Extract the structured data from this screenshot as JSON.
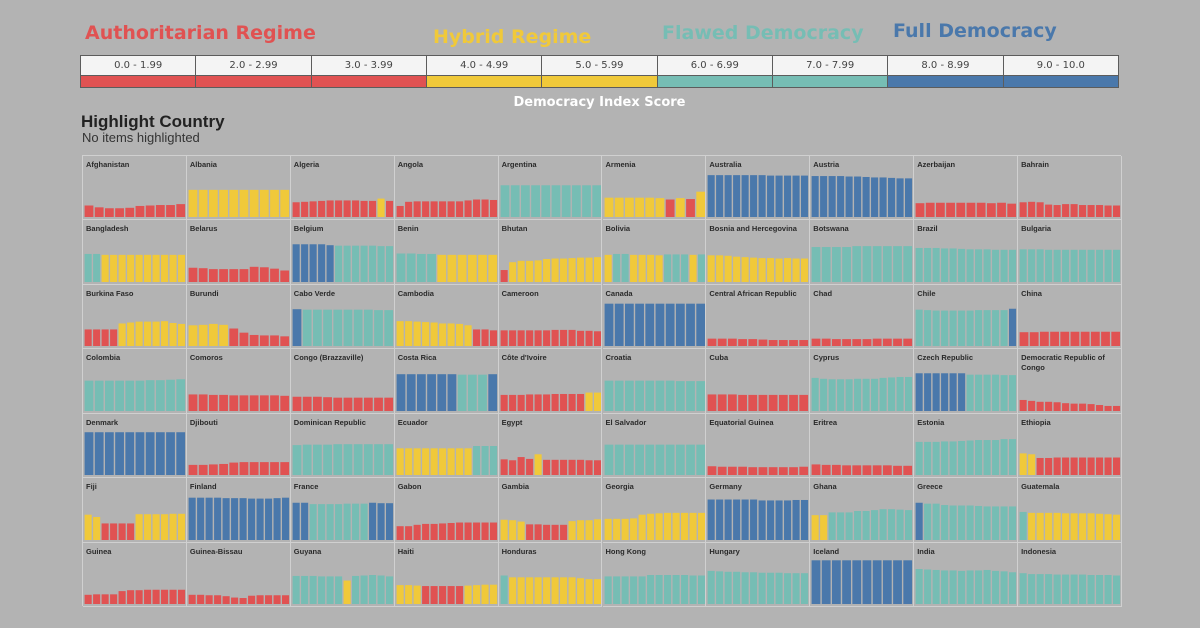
{
  "legend": {
    "titles": [
      {
        "label": "Authoritarian Regime",
        "color": "#e05252"
      },
      {
        "label": "Hybrid Regime",
        "color": "#f0c93a"
      },
      {
        "label": "Flawed Democracy",
        "color": "#76bdb4"
      },
      {
        "label": "Full Democracy",
        "color": "#4a78ab"
      }
    ],
    "segments": [
      {
        "label": "0.0 - 1.99",
        "color": "#e05252"
      },
      {
        "label": "2.0 - 2.99",
        "color": "#e05252"
      },
      {
        "label": "3.0 - 3.99",
        "color": "#e05252"
      },
      {
        "label": "4.0 - 4.99",
        "color": "#f0c93a"
      },
      {
        "label": "5.0 - 5.99",
        "color": "#f0c93a"
      },
      {
        "label": "6.0 - 6.99",
        "color": "#76bdb4"
      },
      {
        "label": "7.0 - 7.99",
        "color": "#76bdb4"
      },
      {
        "label": "8.0 - 8.99",
        "color": "#4a78ab"
      },
      {
        "label": "9.0 - 10.0",
        "color": "#4a78ab"
      }
    ],
    "caption": "Democracy Index Score"
  },
  "highlight": {
    "title": "Highlight Country",
    "status": "No items highlighted"
  },
  "chart_data": {
    "type": "bar",
    "ylim": [
      0,
      10
    ],
    "thresholds": {
      "hybrid": 4.0,
      "flawed": 6.0,
      "full": 8.0
    },
    "colors": {
      "authoritarian": "#e05252",
      "hybrid": "#f0c93a",
      "flawed": "#76bdb4",
      "full": "#4a78ab"
    },
    "countries": [
      {
        "name": "Afghanistan",
        "values": [
          2.5,
          2.1,
          1.9,
          1.9,
          2.0,
          2.4,
          2.5,
          2.6,
          2.6,
          2.8
        ]
      },
      {
        "name": "Albania",
        "values": [
          5.9,
          5.9,
          5.9,
          5.9,
          5.9,
          5.9,
          5.9,
          5.9,
          5.9,
          5.9
        ]
      },
      {
        "name": "Algeria",
        "values": [
          3.2,
          3.3,
          3.4,
          3.5,
          3.6,
          3.6,
          3.6,
          3.6,
          3.5,
          3.5,
          4.0,
          3.5
        ]
      },
      {
        "name": "Angola",
        "values": [
          2.4,
          3.3,
          3.4,
          3.4,
          3.4,
          3.4,
          3.4,
          3.4,
          3.6,
          3.8,
          3.8,
          3.7
        ]
      },
      {
        "name": "Argentina",
        "values": [
          6.9,
          6.9,
          6.9,
          6.9,
          6.9,
          6.9,
          6.9,
          6.9,
          6.9,
          6.9
        ]
      },
      {
        "name": "Armenia",
        "values": [
          4.2,
          4.2,
          4.2,
          4.2,
          4.2,
          4.1,
          3.8,
          4.1,
          3.9,
          5.5
        ]
      },
      {
        "name": "Australia",
        "values": [
          9.1,
          9.1,
          9.1,
          9.1,
          9.1,
          9.1,
          9.1,
          9.0,
          9.0,
          9.0,
          9.0,
          9.0
        ]
      },
      {
        "name": "Austria",
        "values": [
          8.9,
          8.9,
          8.9,
          8.9,
          8.8,
          8.8,
          8.7,
          8.6,
          8.6,
          8.5,
          8.4,
          8.4
        ]
      },
      {
        "name": "Azerbaijan",
        "values": [
          3.0,
          3.1,
          3.1,
          3.1,
          3.1,
          3.1,
          3.1,
          3.0,
          3.1,
          2.9
        ]
      },
      {
        "name": "Bahrain",
        "values": [
          3.2,
          3.3,
          3.2,
          2.7,
          2.6,
          2.8,
          2.8,
          2.6,
          2.6,
          2.6,
          2.5,
          2.5
        ]
      },
      {
        "name": "Bangladesh",
        "values": [
          6.1,
          6.1,
          5.9,
          5.9,
          5.9,
          5.9,
          5.9,
          5.9,
          5.9,
          5.9,
          5.9,
          5.9
        ]
      },
      {
        "name": "Belarus",
        "values": [
          3.1,
          3.0,
          2.8,
          2.8,
          2.8,
          2.8,
          3.3,
          3.2,
          2.9,
          2.5
        ]
      },
      {
        "name": "Belgium",
        "values": [
          8.2,
          8.2,
          8.2,
          8.2,
          8.0,
          7.9,
          7.9,
          7.9,
          7.9,
          7.9,
          7.8,
          7.8
        ]
      },
      {
        "name": "Benin",
        "values": [
          6.2,
          6.2,
          6.1,
          6.1,
          5.9,
          5.9,
          5.9,
          5.9,
          5.9,
          5.9
        ]
      },
      {
        "name": "Bhutan",
        "values": [
          2.6,
          4.3,
          4.6,
          4.6,
          4.7,
          5.0,
          5.1,
          5.1,
          5.2,
          5.3,
          5.3,
          5.4
        ]
      },
      {
        "name": "Bolivia",
        "values": [
          5.9,
          6.1,
          6.1,
          5.9,
          5.9,
          5.9,
          5.8,
          6.0,
          6.0,
          6.0,
          5.9,
          6.0
        ]
      },
      {
        "name": "Bosnia and Hercegovina",
        "values": [
          5.8,
          5.8,
          5.7,
          5.5,
          5.4,
          5.3,
          5.2,
          5.2,
          5.1,
          5.2,
          5.1,
          5.1
        ]
      },
      {
        "name": "Botswana",
        "values": [
          7.6,
          7.6,
          7.6,
          7.6,
          7.8,
          7.8,
          7.8,
          7.8,
          7.8,
          7.8
        ]
      },
      {
        "name": "Brazil",
        "values": [
          7.4,
          7.4,
          7.4,
          7.3,
          7.3,
          7.2,
          7.1,
          7.1,
          7.1,
          7.0,
          7.0,
          7.0
        ]
      },
      {
        "name": "Bulgaria",
        "values": [
          7.1,
          7.1,
          7.1,
          7.0,
          7.0,
          7.0,
          7.0,
          7.0,
          7.0,
          7.0,
          7.0,
          7.0
        ]
      },
      {
        "name": "Burkina Faso",
        "values": [
          3.6,
          3.6,
          3.6,
          3.6,
          4.9,
          5.1,
          5.3,
          5.3,
          5.3,
          5.4,
          5.0,
          4.8
        ]
      },
      {
        "name": "Burundi",
        "values": [
          4.5,
          4.6,
          4.8,
          4.6,
          3.8,
          2.9,
          2.4,
          2.3,
          2.3,
          2.1
        ]
      },
      {
        "name": "Cabo Verde",
        "values": [
          8.0,
          7.9,
          7.9,
          7.9,
          7.9,
          7.9,
          7.9,
          7.9,
          7.8,
          7.8
        ]
      },
      {
        "name": "Cambodia",
        "values": [
          5.4,
          5.4,
          5.3,
          5.2,
          5.1,
          4.9,
          4.9,
          4.8,
          4.5,
          3.6,
          3.6,
          3.4
        ]
      },
      {
        "name": "Cameroon",
        "values": [
          3.4,
          3.4,
          3.4,
          3.4,
          3.4,
          3.4,
          3.5,
          3.5,
          3.5,
          3.3,
          3.3,
          3.2
        ]
      },
      {
        "name": "Canada",
        "values": [
          9.2,
          9.2,
          9.2,
          9.2,
          9.2,
          9.2,
          9.2,
          9.2,
          9.2,
          9.2
        ]
      },
      {
        "name": "Central African Republic",
        "values": [
          1.6,
          1.6,
          1.6,
          1.5,
          1.5,
          1.4,
          1.3,
          1.3,
          1.3,
          1.3
        ]
      },
      {
        "name": "Chad",
        "values": [
          1.6,
          1.6,
          1.5,
          1.5,
          1.5,
          1.5,
          1.6,
          1.6,
          1.6,
          1.6
        ]
      },
      {
        "name": "Chile",
        "values": [
          7.9,
          7.8,
          7.7,
          7.7,
          7.7,
          7.7,
          7.7,
          7.8,
          7.8,
          7.8,
          7.8,
          8.1
        ]
      },
      {
        "name": "China",
        "values": [
          3.0,
          3.0,
          3.1,
          3.1,
          3.1,
          3.1,
          3.1,
          3.1,
          3.1,
          3.1
        ]
      },
      {
        "name": "Colombia",
        "values": [
          6.6,
          6.6,
          6.6,
          6.6,
          6.6,
          6.6,
          6.7,
          6.7,
          6.8,
          6.9
        ]
      },
      {
        "name": "Comoros",
        "values": [
          3.6,
          3.6,
          3.5,
          3.5,
          3.4,
          3.4,
          3.4,
          3.4,
          3.4,
          3.3
        ]
      },
      {
        "name": "Congo (Brazzaville)",
        "values": [
          3.1,
          3.1,
          3.1,
          3.0,
          2.9,
          2.9,
          2.9,
          2.9,
          2.9,
          2.9
        ]
      },
      {
        "name": "Costa Rica",
        "values": [
          8.0,
          8.0,
          8.0,
          8.0,
          8.0,
          8.0,
          7.9,
          7.9,
          7.9,
          8.0
        ]
      },
      {
        "name": "Côte d'Ivoire",
        "values": [
          3.5,
          3.5,
          3.5,
          3.6,
          3.6,
          3.6,
          3.7,
          3.7,
          3.7,
          3.7,
          4.0,
          4.0
        ]
      },
      {
        "name": "Croatia",
        "values": [
          6.6,
          6.6,
          6.6,
          6.6,
          6.6,
          6.6,
          6.6,
          6.5,
          6.5,
          6.5
        ]
      },
      {
        "name": "Cuba",
        "values": [
          3.6,
          3.6,
          3.6,
          3.5,
          3.5,
          3.5,
          3.5,
          3.5,
          3.5,
          3.5
        ]
      },
      {
        "name": "Cyprus",
        "values": [
          7.2,
          7.0,
          6.9,
          6.9,
          6.9,
          7.0,
          7.0,
          7.0,
          7.2,
          7.3,
          7.4,
          7.4
        ]
      },
      {
        "name": "Czech Republic",
        "values": [
          8.2,
          8.2,
          8.2,
          8.2,
          8.2,
          8.2,
          7.9,
          7.9,
          7.9,
          7.9,
          7.8,
          7.8
        ]
      },
      {
        "name": "Democratic Republic of Congo",
        "values": [
          2.4,
          2.2,
          2.0,
          2.0,
          1.9,
          1.7,
          1.6,
          1.6,
          1.5,
          1.3,
          1.1,
          1.1
        ]
      },
      {
        "name": "Denmark",
        "values": [
          9.3,
          9.3,
          9.3,
          9.3,
          9.3,
          9.3,
          9.3,
          9.3,
          9.3,
          9.3
        ]
      },
      {
        "name": "Djibouti",
        "values": [
          2.2,
          2.2,
          2.3,
          2.4,
          2.7,
          2.8,
          2.8,
          2.8,
          2.8,
          2.8
        ]
      },
      {
        "name": "Dominican Republic",
        "values": [
          6.5,
          6.6,
          6.6,
          6.6,
          6.7,
          6.7,
          6.7,
          6.7,
          6.7,
          6.7
        ]
      },
      {
        "name": "Ecuador",
        "values": [
          5.8,
          5.8,
          5.8,
          5.8,
          5.8,
          5.8,
          5.8,
          5.8,
          5.8,
          6.3,
          6.3,
          6.3
        ]
      },
      {
        "name": "Egypt",
        "values": [
          3.4,
          3.2,
          3.9,
          3.5,
          4.5,
          3.3,
          3.3,
          3.3,
          3.3,
          3.3,
          3.2,
          3.2
        ]
      },
      {
        "name": "El Salvador",
        "values": [
          6.6,
          6.6,
          6.6,
          6.6,
          6.6,
          6.6,
          6.6,
          6.6,
          6.6,
          6.6
        ]
      },
      {
        "name": "Equatorial Guinea",
        "values": [
          1.9,
          1.8,
          1.8,
          1.8,
          1.7,
          1.7,
          1.7,
          1.7,
          1.7,
          1.8
        ]
      },
      {
        "name": "Eritrea",
        "values": [
          2.3,
          2.2,
          2.2,
          2.1,
          2.1,
          2.1,
          2.1,
          2.1,
          2.0,
          2.0
        ]
      },
      {
        "name": "Estonia",
        "values": [
          7.2,
          7.2,
          7.2,
          7.3,
          7.3,
          7.4,
          7.5,
          7.6,
          7.6,
          7.6,
          7.8,
          7.8
        ]
      },
      {
        "name": "Ethiopia",
        "values": [
          4.7,
          4.5,
          3.7,
          3.7,
          3.8,
          3.8,
          3.8,
          3.8,
          3.8,
          3.8,
          3.8,
          3.8
        ]
      },
      {
        "name": "Fiji",
        "values": [
          5.5,
          5.0,
          3.6,
          3.6,
          3.6,
          3.6,
          5.6,
          5.6,
          5.6,
          5.6,
          5.7,
          5.7
        ]
      },
      {
        "name": "Finland",
        "values": [
          9.2,
          9.2,
          9.2,
          9.2,
          9.1,
          9.1,
          9.1,
          9.0,
          9.0,
          9.0,
          9.1,
          9.2
        ]
      },
      {
        "name": "France",
        "values": [
          8.1,
          8.1,
          7.8,
          7.8,
          7.8,
          7.8,
          7.9,
          7.9,
          7.9,
          8.1,
          8.0,
          8.0
        ]
      },
      {
        "name": "Gabon",
        "values": [
          3.0,
          3.0,
          3.3,
          3.5,
          3.5,
          3.6,
          3.7,
          3.8,
          3.8,
          3.8,
          3.8,
          3.8
        ]
      },
      {
        "name": "Gambia",
        "values": [
          4.4,
          4.3,
          4.0,
          3.4,
          3.4,
          3.3,
          3.3,
          3.3,
          4.1,
          4.3,
          4.3,
          4.5
        ]
      },
      {
        "name": "Georgia",
        "values": [
          4.6,
          4.6,
          4.6,
          4.7,
          5.5,
          5.7,
          5.8,
          5.9,
          5.9,
          5.9,
          5.9,
          5.9
        ]
      },
      {
        "name": "Germany",
        "values": [
          8.8,
          8.8,
          8.8,
          8.8,
          8.8,
          8.8,
          8.6,
          8.6,
          8.6,
          8.6,
          8.7,
          8.7
        ]
      },
      {
        "name": "Ghana",
        "values": [
          5.4,
          5.4,
          6.0,
          6.0,
          6.0,
          6.3,
          6.3,
          6.5,
          6.7,
          6.7,
          6.6,
          6.5
        ]
      },
      {
        "name": "Greece",
        "values": [
          8.1,
          7.9,
          7.9,
          7.6,
          7.5,
          7.5,
          7.5,
          7.4,
          7.3,
          7.3,
          7.3,
          7.3
        ]
      },
      {
        "name": "Guatemala",
        "values": [
          6.1,
          5.9,
          5.9,
          5.9,
          5.9,
          5.8,
          5.8,
          5.8,
          5.8,
          5.7,
          5.6,
          5.5
        ]
      },
      {
        "name": "Guinea",
        "values": [
          2.0,
          2.1,
          2.1,
          2.1,
          2.8,
          3.0,
          3.0,
          3.1,
          3.1,
          3.1,
          3.1,
          3.1
        ]
      },
      {
        "name": "Guinea-Bissau",
        "values": [
          2.0,
          2.0,
          1.9,
          1.9,
          1.7,
          1.4,
          1.3,
          1.8,
          1.9,
          1.9,
          1.9,
          1.9
        ]
      },
      {
        "name": "Guyana",
        "values": [
          6.1,
          6.1,
          6.1,
          6.0,
          6.0,
          6.0,
          5.1,
          6.1,
          6.2,
          6.3,
          6.2,
          6.0
        ]
      },
      {
        "name": "Haiti",
        "values": [
          4.1,
          4.1,
          4.0,
          3.9,
          3.9,
          3.9,
          3.9,
          3.9,
          4.0,
          4.1,
          4.2,
          4.2
        ]
      },
      {
        "name": "Honduras",
        "values": [
          6.2,
          5.8,
          5.8,
          5.8,
          5.8,
          5.8,
          5.8,
          5.8,
          5.8,
          5.6,
          5.4,
          5.4
        ]
      },
      {
        "name": "Hong Kong",
        "values": [
          6.0,
          6.0,
          6.0,
          6.0,
          6.0,
          6.3,
          6.3,
          6.3,
          6.3,
          6.3,
          6.2,
          6.2
        ]
      },
      {
        "name": "Hungary",
        "values": [
          7.2,
          7.1,
          7.0,
          7.0,
          6.9,
          6.9,
          6.8,
          6.8,
          6.8,
          6.7,
          6.7,
          6.7
        ]
      },
      {
        "name": "Iceland",
        "values": [
          9.5,
          9.5,
          9.5,
          9.5,
          9.5,
          9.5,
          9.5,
          9.5,
          9.5,
          9.5
        ]
      },
      {
        "name": "India",
        "values": [
          7.6,
          7.5,
          7.4,
          7.3,
          7.3,
          7.2,
          7.3,
          7.3,
          7.4,
          7.2,
          7.1,
          6.9
        ]
      },
      {
        "name": "Indonesia",
        "values": [
          6.7,
          6.5,
          6.5,
          6.5,
          6.4,
          6.4,
          6.4,
          6.4,
          6.3,
          6.3,
          6.3,
          6.2
        ]
      }
    ]
  }
}
